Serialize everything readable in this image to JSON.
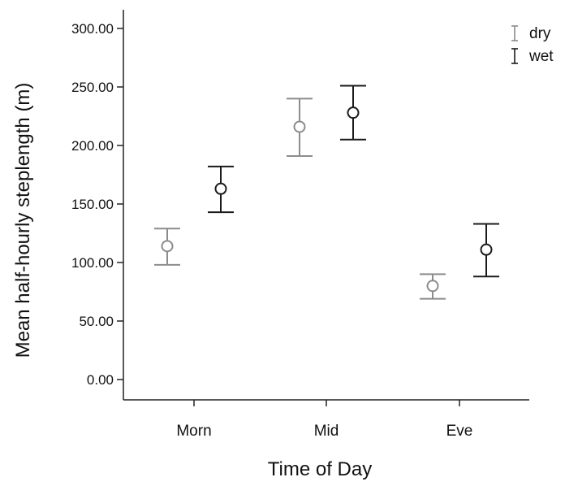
{
  "chart_data": {
    "type": "errorbar",
    "xlabel": "Time of Day",
    "ylabel": "Mean half-hourly steplength (m)",
    "categories": [
      "Morn",
      "Mid",
      "Eve"
    ],
    "ylim": [
      0,
      300
    ],
    "yticks": [
      0,
      50,
      100,
      150,
      200,
      250,
      300
    ],
    "ytick_labels": [
      "0.00",
      "50.00",
      "100.00",
      "150.00",
      "200.00",
      "250.00",
      "300.00"
    ],
    "grid": false,
    "legend_position": "top-right",
    "series": [
      {
        "name": "dry",
        "color": "#8c8c8c",
        "means": [
          114,
          216,
          80
        ],
        "lower": [
          98,
          191,
          69
        ],
        "upper": [
          129,
          240,
          90
        ]
      },
      {
        "name": "wet",
        "color": "#1a1a1a",
        "means": [
          163,
          228,
          111
        ],
        "upper": [
          182,
          251,
          133
        ],
        "lower": [
          143,
          205,
          88
        ]
      }
    ]
  }
}
